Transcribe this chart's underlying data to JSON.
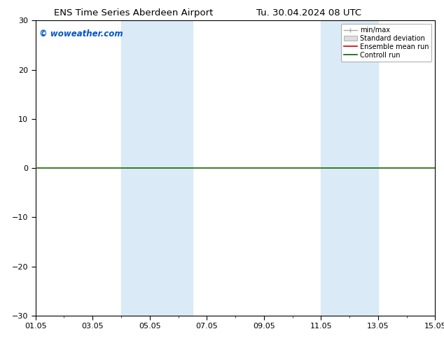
{
  "title_left": "ENS Time Series Aberdeen Airport",
  "title_right": "Tu. 30.04.2024 08 UTC",
  "ylim": [
    -30,
    30
  ],
  "yticks": [
    -30,
    -20,
    -10,
    0,
    10,
    20,
    30
  ],
  "xlim": [
    0,
    14
  ],
  "xtick_labels": [
    "01.05",
    "03.05",
    "05.05",
    "07.05",
    "09.05",
    "11.05",
    "13.05",
    "15.05"
  ],
  "xtick_positions": [
    0,
    2,
    4,
    6,
    8,
    10,
    12,
    14
  ],
  "shaded_bands": [
    {
      "xmin": 3.0,
      "xmax": 4.0
    },
    {
      "xmin": 4.0,
      "xmax": 5.5
    },
    {
      "xmin": 10.0,
      "xmax": 11.0
    },
    {
      "xmin": 11.0,
      "xmax": 12.0
    }
  ],
  "shade_color": "#daeaf7",
  "zero_line_color": "#1a6600",
  "watermark": "© woweather.com",
  "watermark_color": "#0055cc",
  "legend_entries": [
    "min/max",
    "Standard deviation",
    "Ensemble mean run",
    "Controll run"
  ],
  "legend_line_colors": [
    "#aaaaaa",
    "#cccccc",
    "#cc0000",
    "#006600"
  ],
  "background_color": "#ffffff",
  "fig_width": 6.34,
  "fig_height": 4.9,
  "dpi": 100
}
